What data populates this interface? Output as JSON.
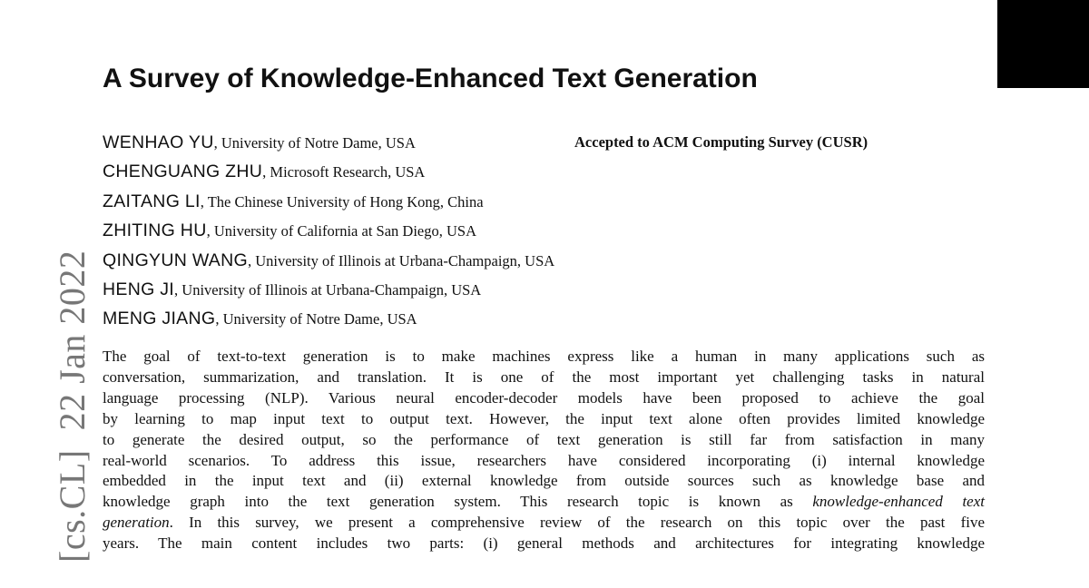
{
  "arxiv_stamp": "[cs.CL]  22 Jan 2022",
  "title": "A Survey of Knowledge-Enhanced Text Generation",
  "acceptance_note": "Accepted to ACM Computing Survey (CUSR)",
  "authors": [
    {
      "name": "WENHAO YU",
      "affiliation": ", University of Notre Dame, USA"
    },
    {
      "name": "CHENGUANG ZHU",
      "affiliation": ", Microsoft Research, USA"
    },
    {
      "name": "ZAITANG LI",
      "affiliation": ", The Chinese University of Hong Kong, China"
    },
    {
      "name": "ZHITING HU",
      "affiliation": ", University of California at San Diego, USA"
    },
    {
      "name": "QINGYUN WANG",
      "affiliation": ", University of Illinois at Urbana-Champaign, USA"
    },
    {
      "name": "HENG JI",
      "affiliation": ", University of Illinois at Urbana-Champaign, USA"
    },
    {
      "name": "MENG JIANG",
      "affiliation": ", University of Notre Dame, USA"
    }
  ],
  "abstract_lines": [
    "The goal of text-to-text generation is to make machines express like a human in many applications such as",
    "conversation, summarization, and translation. It is one of the most important yet challenging tasks in natural",
    "language processing (NLP). Various neural encoder-decoder models have been proposed to achieve the goal",
    "by learning to map input text to output text. However, the input text alone often provides limited knowledge",
    "to generate the desired output, so the performance of text generation is still far from satisfaction in many",
    "real-world scenarios. To address this issue, researchers have considered incorporating (i) internal knowledge",
    "embedded in the input text and (ii) external knowledge from outside sources such as knowledge base and",
    "knowledge graph into the text generation system. This research topic is known as"
  ],
  "abstract_italic_1": "knowledge-enhanced text",
  "abstract_italic_2": "generation",
  "abstract_line9_rest": ". In this survey, we present a comprehensive review of the research on this topic over the past five",
  "abstract_line10": "years. The main content includes two parts: (i) general methods and architectures for integrating knowledge"
}
